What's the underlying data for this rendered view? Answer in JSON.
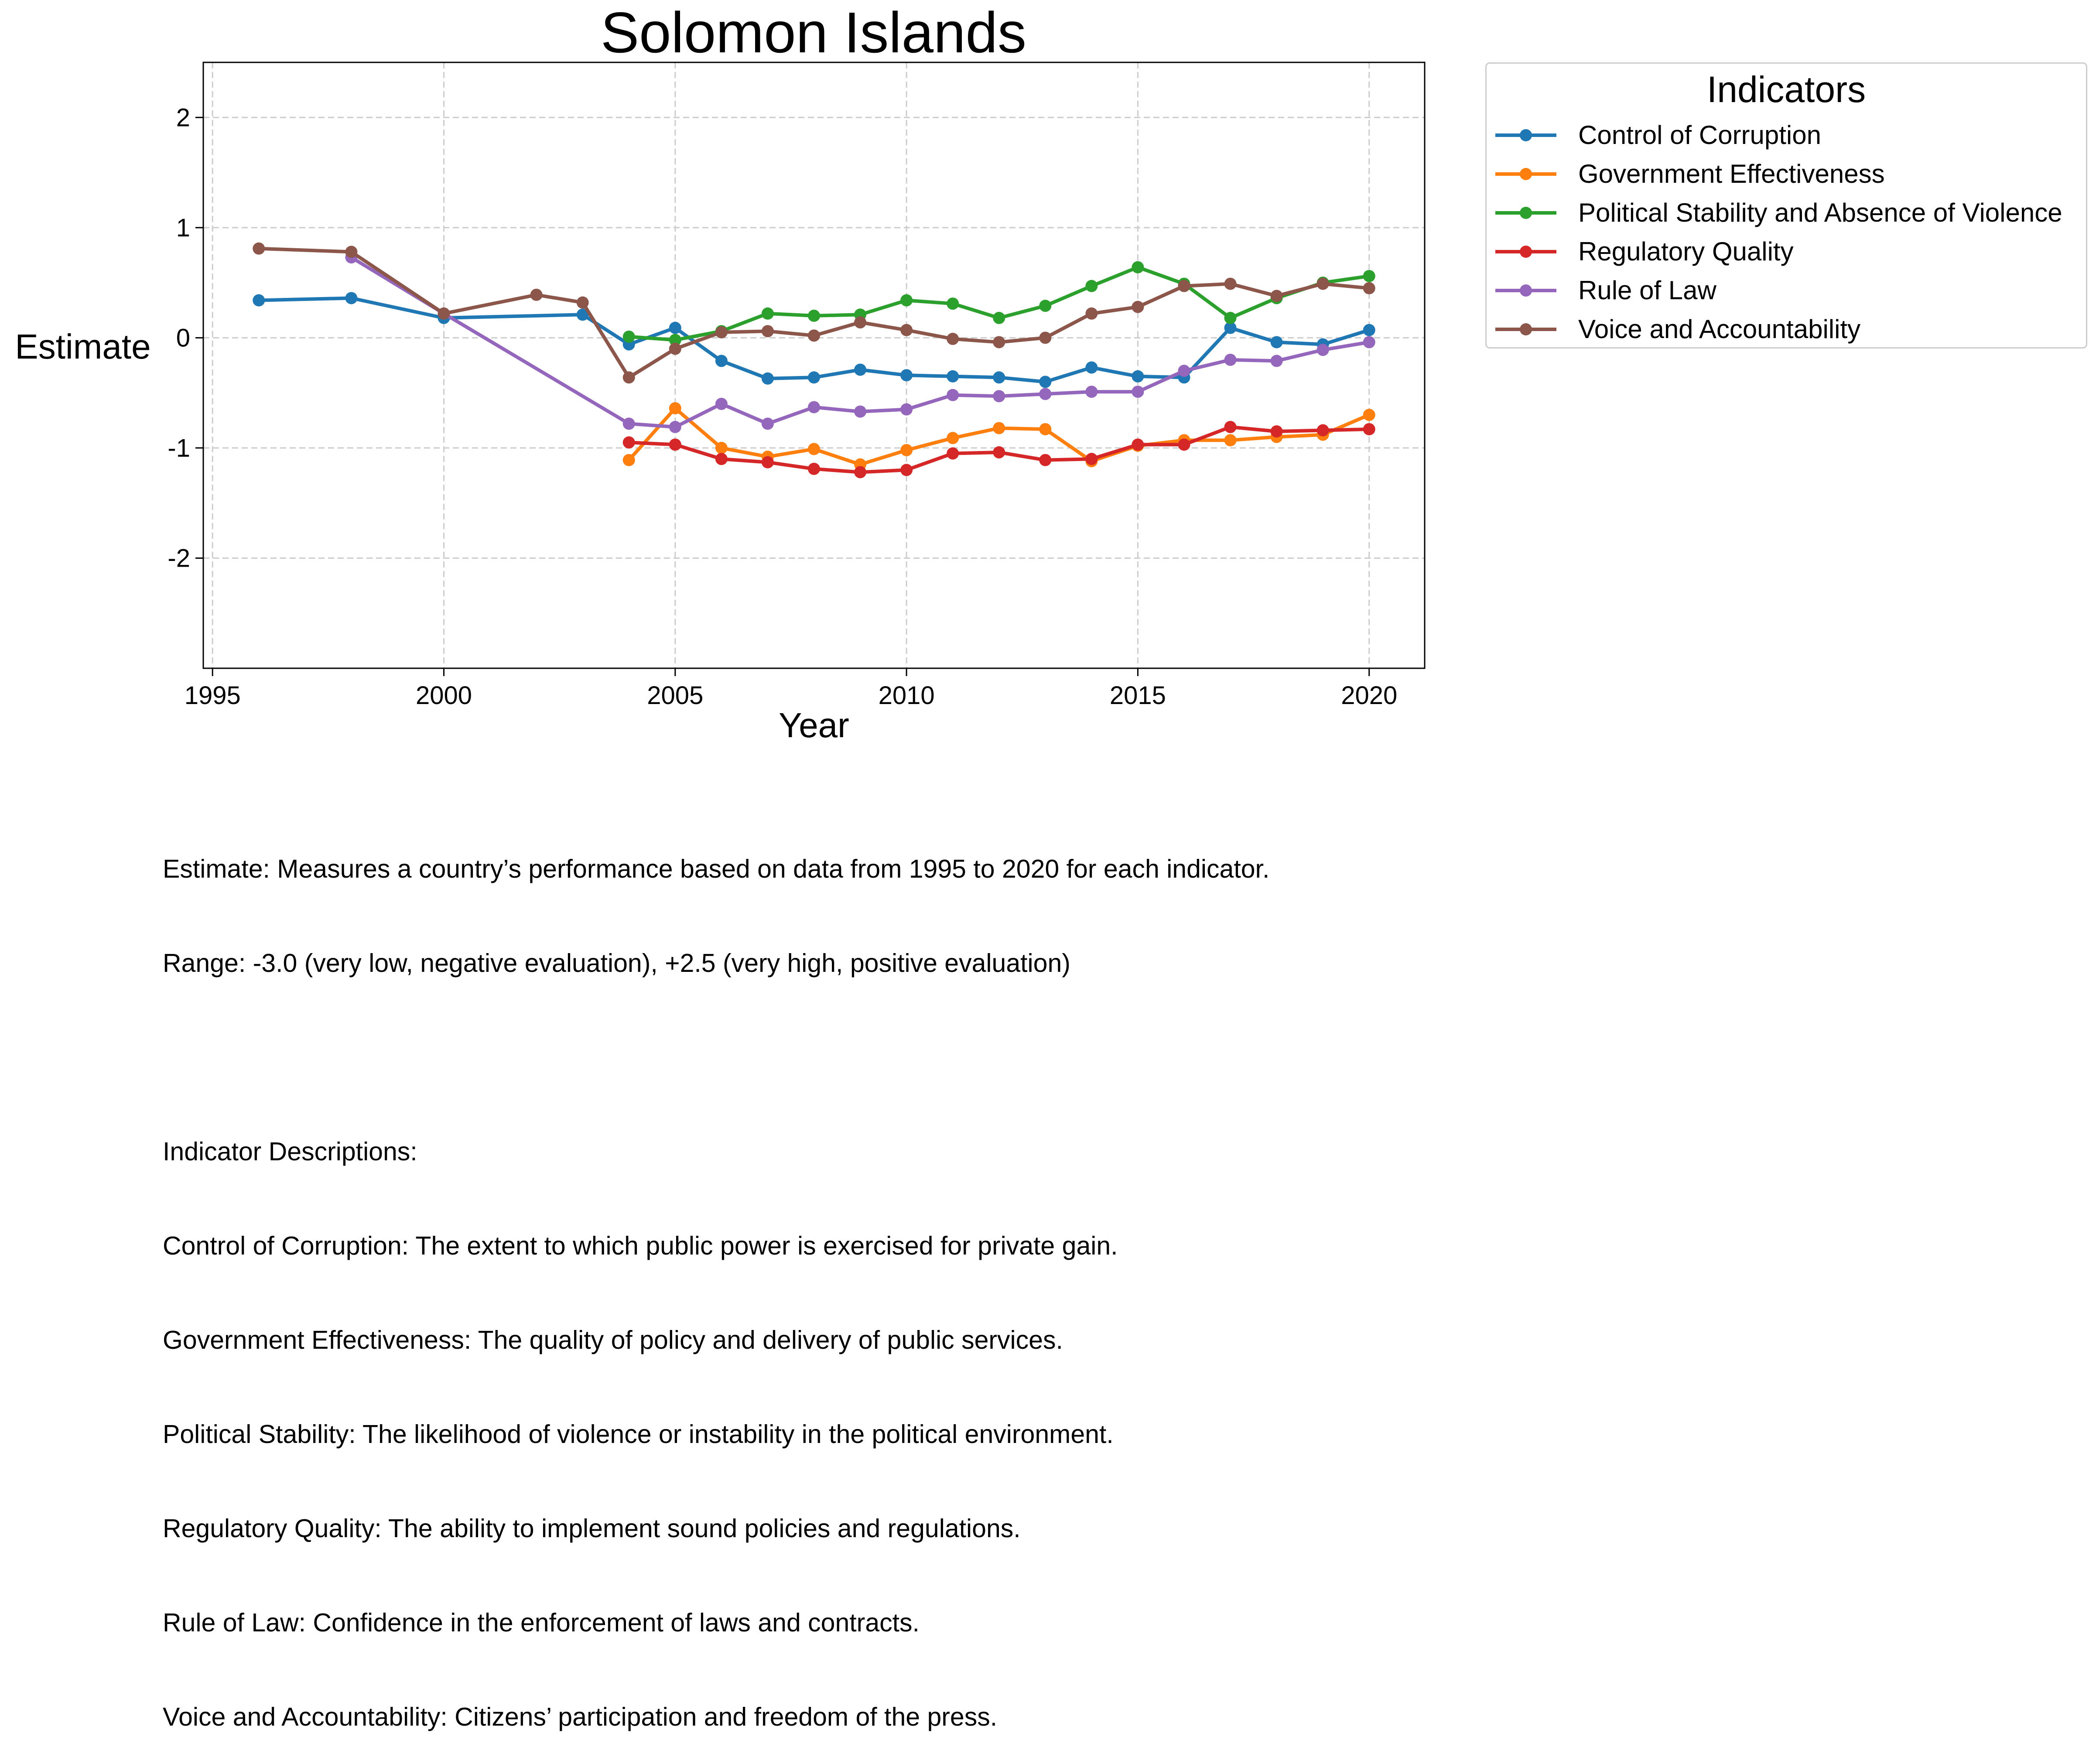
{
  "chart_data": {
    "type": "line",
    "title": "Solomon Islands",
    "xlabel": "Year",
    "ylabel": "Estimate",
    "xlim": [
      1994.8,
      2021.2
    ],
    "ylim": [
      -3.0,
      2.5
    ],
    "x_ticks": [
      1995,
      2000,
      2005,
      2010,
      2015,
      2020
    ],
    "x_tick_labels": [
      "1995",
      "2000",
      "2005",
      "2010",
      "2015",
      "2020"
    ],
    "y_ticks": [
      -2,
      -1,
      0,
      1,
      2
    ],
    "y_tick_labels": [
      "-2",
      "-1",
      "0",
      "1",
      "2"
    ],
    "grid": true,
    "legend": {
      "title": "Indicators",
      "placement": "outside-right-top"
    },
    "series": [
      {
        "name": "Control of Corruption",
        "color": "#1f77b4",
        "points": [
          [
            1996,
            0.34
          ],
          [
            1998,
            0.36
          ],
          [
            2000,
            0.18
          ],
          [
            2003,
            0.21
          ],
          [
            2004,
            -0.06
          ],
          [
            2005,
            0.09
          ],
          [
            2006,
            -0.21
          ],
          [
            2007,
            -0.37
          ],
          [
            2008,
            -0.36
          ],
          [
            2009,
            -0.29
          ],
          [
            2010,
            -0.34
          ],
          [
            2011,
            -0.35
          ],
          [
            2012,
            -0.36
          ],
          [
            2013,
            -0.4
          ],
          [
            2014,
            -0.27
          ],
          [
            2015,
            -0.35
          ],
          [
            2016,
            -0.36
          ],
          [
            2017,
            0.09
          ],
          [
            2018,
            -0.04
          ],
          [
            2019,
            -0.06
          ],
          [
            2020,
            0.07
          ]
        ]
      },
      {
        "name": "Government Effectiveness",
        "color": "#ff7f0e",
        "points": [
          [
            2004,
            -1.11
          ],
          [
            2005,
            -0.64
          ],
          [
            2006,
            -1.0
          ],
          [
            2007,
            -1.08
          ],
          [
            2008,
            -1.01
          ],
          [
            2009,
            -1.15
          ],
          [
            2010,
            -1.02
          ],
          [
            2011,
            -0.91
          ],
          [
            2012,
            -0.82
          ],
          [
            2013,
            -0.83
          ],
          [
            2014,
            -1.12
          ],
          [
            2015,
            -0.98
          ],
          [
            2016,
            -0.93
          ],
          [
            2017,
            -0.93
          ],
          [
            2018,
            -0.9
          ],
          [
            2019,
            -0.88
          ],
          [
            2020,
            -0.7
          ]
        ]
      },
      {
        "name": "Political Stability and Absence of Violence",
        "color": "#2ca02c",
        "points": [
          [
            2004,
            0.01
          ],
          [
            2005,
            -0.02
          ],
          [
            2006,
            0.06
          ],
          [
            2007,
            0.22
          ],
          [
            2008,
            0.2
          ],
          [
            2009,
            0.21
          ],
          [
            2010,
            0.34
          ],
          [
            2011,
            0.31
          ],
          [
            2012,
            0.18
          ],
          [
            2013,
            0.29
          ],
          [
            2014,
            0.47
          ],
          [
            2015,
            0.64
          ],
          [
            2016,
            0.49
          ],
          [
            2017,
            0.18
          ],
          [
            2018,
            0.36
          ],
          [
            2019,
            0.5
          ],
          [
            2020,
            0.56
          ]
        ]
      },
      {
        "name": "Regulatory Quality",
        "color": "#d62728",
        "points": [
          [
            2004,
            -0.95
          ],
          [
            2005,
            -0.97
          ],
          [
            2006,
            -1.1
          ],
          [
            2007,
            -1.13
          ],
          [
            2008,
            -1.19
          ],
          [
            2009,
            -1.22
          ],
          [
            2010,
            -1.2
          ],
          [
            2011,
            -1.05
          ],
          [
            2012,
            -1.04
          ],
          [
            2013,
            -1.11
          ],
          [
            2014,
            -1.1
          ],
          [
            2015,
            -0.97
          ],
          [
            2016,
            -0.97
          ],
          [
            2017,
            -0.81
          ],
          [
            2018,
            -0.85
          ],
          [
            2019,
            -0.84
          ],
          [
            2020,
            -0.83
          ]
        ]
      },
      {
        "name": "Rule of Law",
        "color": "#9467bd",
        "points": [
          [
            1998,
            0.73
          ],
          [
            2000,
            0.22
          ],
          [
            2004,
            -0.78
          ],
          [
            2005,
            -0.81
          ],
          [
            2006,
            -0.6
          ],
          [
            2007,
            -0.78
          ],
          [
            2008,
            -0.63
          ],
          [
            2009,
            -0.67
          ],
          [
            2010,
            -0.65
          ],
          [
            2011,
            -0.52
          ],
          [
            2012,
            -0.53
          ],
          [
            2013,
            -0.51
          ],
          [
            2014,
            -0.49
          ],
          [
            2015,
            -0.49
          ],
          [
            2016,
            -0.3
          ],
          [
            2017,
            -0.2
          ],
          [
            2018,
            -0.21
          ],
          [
            2019,
            -0.11
          ],
          [
            2020,
            -0.04
          ]
        ]
      },
      {
        "name": "Voice and Accountability",
        "color": "#8c564b",
        "points": [
          [
            1996,
            0.81
          ],
          [
            1998,
            0.78
          ],
          [
            2000,
            0.22
          ],
          [
            2002,
            0.39
          ],
          [
            2003,
            0.32
          ],
          [
            2004,
            -0.36
          ],
          [
            2005,
            -0.1
          ],
          [
            2006,
            0.05
          ],
          [
            2007,
            0.06
          ],
          [
            2008,
            0.02
          ],
          [
            2009,
            0.14
          ],
          [
            2010,
            0.07
          ],
          [
            2011,
            -0.01
          ],
          [
            2012,
            -0.04
          ],
          [
            2013,
            0.0
          ],
          [
            2014,
            0.22
          ],
          [
            2015,
            0.28
          ],
          [
            2016,
            0.47
          ],
          [
            2017,
            0.49
          ],
          [
            2018,
            0.38
          ],
          [
            2019,
            0.49
          ],
          [
            2020,
            0.45
          ]
        ]
      }
    ]
  },
  "notes": {
    "line1": "Estimate: Measures a country’s performance based on data from 1995 to 2020 for each indicator.",
    "line2": "Range: -3.0 (very low, negative evaluation), +2.5 (very high, positive evaluation)",
    "line3": "Indicator Descriptions:",
    "line4": "Control of Corruption: The extent to which public power is exercised for private gain.",
    "line5": "Government Effectiveness: The quality of policy and delivery of public services.",
    "line6": "Political Stability: The likelihood of violence or instability in the political environment.",
    "line7": "Regulatory Quality: The ability to implement sound policies and regulations.",
    "line8": "Rule of Law: Confidence in the enforcement of laws and contracts.",
    "line9": "Voice and Accountability: Citizens’ participation and freedom of the press."
  }
}
